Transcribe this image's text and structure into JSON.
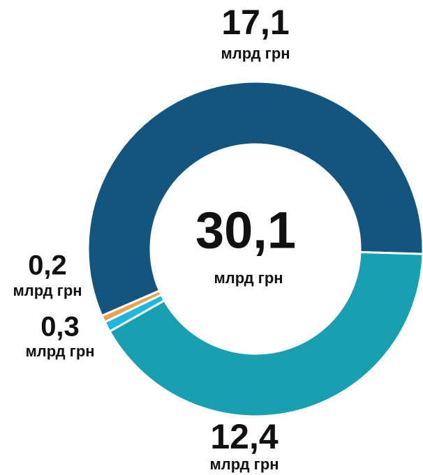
{
  "chart_data": {
    "type": "donut",
    "values": [
      17.1,
      12.4,
      0.3,
      0.2
    ],
    "value_labels": [
      "17,1",
      "12,4",
      "0,3",
      "0,2"
    ],
    "colors": [
      "#13557f",
      "#18a0b1",
      "#1db7df",
      "#f0a04b"
    ],
    "unit": "млрд грн",
    "center_text": "30,1"
  }
}
